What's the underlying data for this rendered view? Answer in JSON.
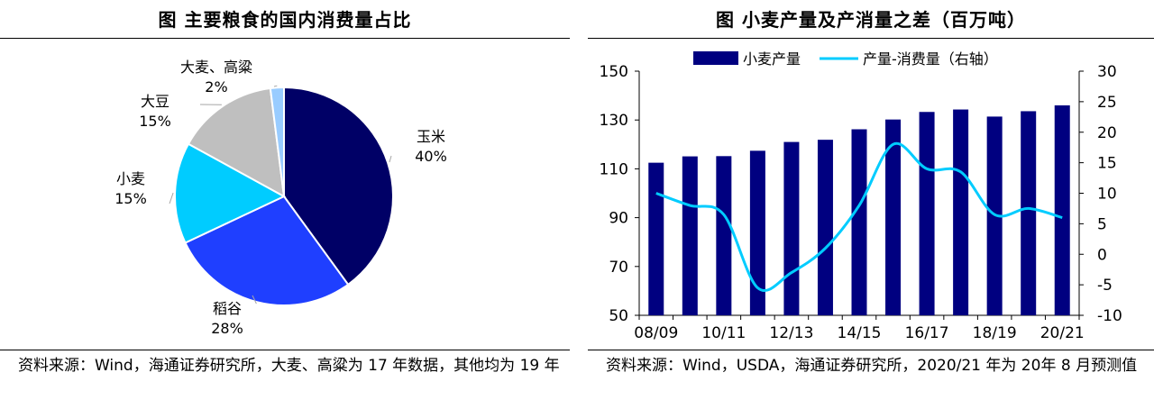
{
  "left": {
    "title": "图  主要粮食的国内消费量占比",
    "source": "资料来源：Wind，海通证券研究所，大麦、高粱为 17 年数据，其他均为 19 年",
    "chart_data": {
      "type": "pie",
      "slices": [
        {
          "label": "玉米",
          "value": 40,
          "display": "40%",
          "color": "#000066"
        },
        {
          "label": "稻谷",
          "value": 28,
          "display": "28%",
          "color": "#1f3fff"
        },
        {
          "label": "小麦",
          "value": 15,
          "display": "15%",
          "color": "#00ccff"
        },
        {
          "label": "大豆",
          "value": 15,
          "display": "15%",
          "color": "#bfbfbf"
        },
        {
          "label": "大麦、高粱",
          "value": 2,
          "display": "2%",
          "color": "#99ccff"
        }
      ]
    }
  },
  "right": {
    "title": "图  小麦产量及产消量之差（百万吨）",
    "source": "资料来源：Wind，USDA，海通证券研究所，2020/21 年为 20年 8 月预测值",
    "chart_data": {
      "type": "bar",
      "x": [
        "08/09",
        "09/10",
        "10/11",
        "11/12",
        "12/13",
        "13/14",
        "14/15",
        "15/16",
        "16/17",
        "17/18",
        "18/19",
        "19/20",
        "20/21"
      ],
      "x_tick_labels": [
        "08/09",
        "",
        "10/11",
        "",
        "12/13",
        "",
        "14/15",
        "",
        "16/17",
        "",
        "18/19",
        "",
        "20/21"
      ],
      "series": [
        {
          "name": "小麦产量",
          "type": "bar",
          "axis": "left",
          "color": "#000080",
          "values": [
            112.5,
            115.1,
            115.2,
            117.4,
            121.0,
            121.9,
            126.2,
            130.2,
            133.3,
            134.3,
            131.4,
            133.6,
            136.0
          ]
        },
        {
          "name": "产量-消费量（右轴）",
          "type": "line",
          "axis": "right",
          "color": "#00ccff",
          "values": [
            10.0,
            8.0,
            6.5,
            -5.5,
            -3.0,
            1.0,
            8.0,
            18.0,
            14.0,
            13.5,
            6.5,
            7.5,
            6.0
          ]
        }
      ],
      "ylim_left": [
        50,
        150
      ],
      "yticks_left": [
        50,
        70,
        90,
        110,
        130,
        150
      ],
      "ylim_right": [
        -10,
        30
      ],
      "yticks_right": [
        -10,
        -5,
        0,
        5,
        10,
        15,
        20,
        25,
        30
      ],
      "legend_position": "top"
    }
  }
}
